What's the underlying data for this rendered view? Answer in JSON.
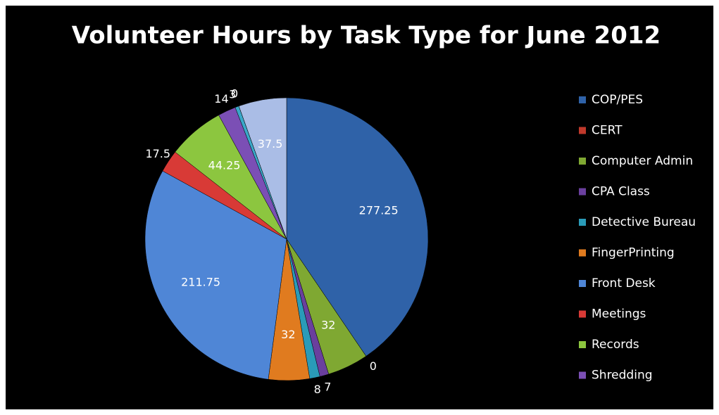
{
  "chart_data": {
    "type": "pie",
    "title": "Volunteer Hours  by Task Type for June 2012",
    "categories": [
      "COP/PES",
      "CERT",
      "Computer Admin",
      "CPA Class",
      "Detective Bureau",
      "FingerPrinting",
      "Front Desk",
      "Meetings",
      "Records",
      "Shredding",
      null,
      null,
      null
    ],
    "values": [
      277.25,
      0,
      32,
      7,
      8,
      32,
      211.75,
      17.5,
      44.25,
      14,
      3,
      0,
      37.5
    ],
    "colors": [
      "#2f62a8",
      "#c0392b",
      "#7fa832",
      "#6a3f9e",
      "#2a9bb8",
      "#e07b1f",
      "#4f86d6",
      "#d83a36",
      "#8cc63f",
      "#7b4fb5",
      "#3aa8c8",
      "#f09030",
      "#aabde6"
    ],
    "legend": "right"
  }
}
